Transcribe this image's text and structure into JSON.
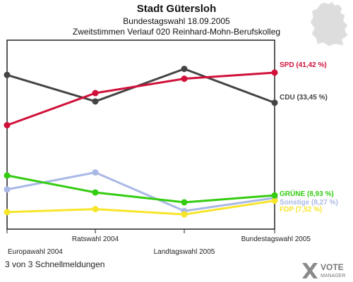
{
  "header": {
    "title": "Stadt Gütersloh",
    "subtitle": "Bundestagswahl 18.09.2005",
    "subtitle2": "Zweitstimmen Verlauf 020 Reinhard-Mohn-Berufskolleg"
  },
  "footer": {
    "note": "3 von 3 Schnellmeldungen",
    "logo_text_1": "VOTE",
    "logo_text_2": "MANAGER"
  },
  "chart_data": {
    "type": "line",
    "title": "Stadt Gütersloh",
    "subtitle": "Zweitstimmen Verlauf 020 Reinhard-Mohn-Berufskolleg",
    "categories": [
      "Europawahl 2004",
      "Ratswahl 2004",
      "Landtagswahl 2005",
      "Bundestagswahl 2005"
    ],
    "ylim": [
      0,
      50
    ],
    "grid": false,
    "series": [
      {
        "name": "SPD",
        "label": "SPD (41,42 %)",
        "color": "#d0103a",
        "values": [
          27.5,
          36.0,
          39.8,
          41.42
        ]
      },
      {
        "name": "CDU",
        "label": "CDU (33,45 %)",
        "color": "#444444",
        "values": [
          40.8,
          33.8,
          42.4,
          33.45
        ]
      },
      {
        "name": "GRÜNE",
        "label": "GRÜNE (8,93 %)",
        "color": "#33cc11",
        "values": [
          14.2,
          9.7,
          7.1,
          8.93
        ]
      },
      {
        "name": "Sonstige",
        "label": "Sonstige (8,27 %)",
        "color": "#a9b8e6",
        "values": [
          10.5,
          15.0,
          4.8,
          8.27
        ]
      },
      {
        "name": "FDP",
        "label": "FDP (7,52 %)",
        "color": "#f7e52a",
        "values": [
          4.5,
          5.3,
          3.9,
          7.52
        ]
      }
    ]
  }
}
